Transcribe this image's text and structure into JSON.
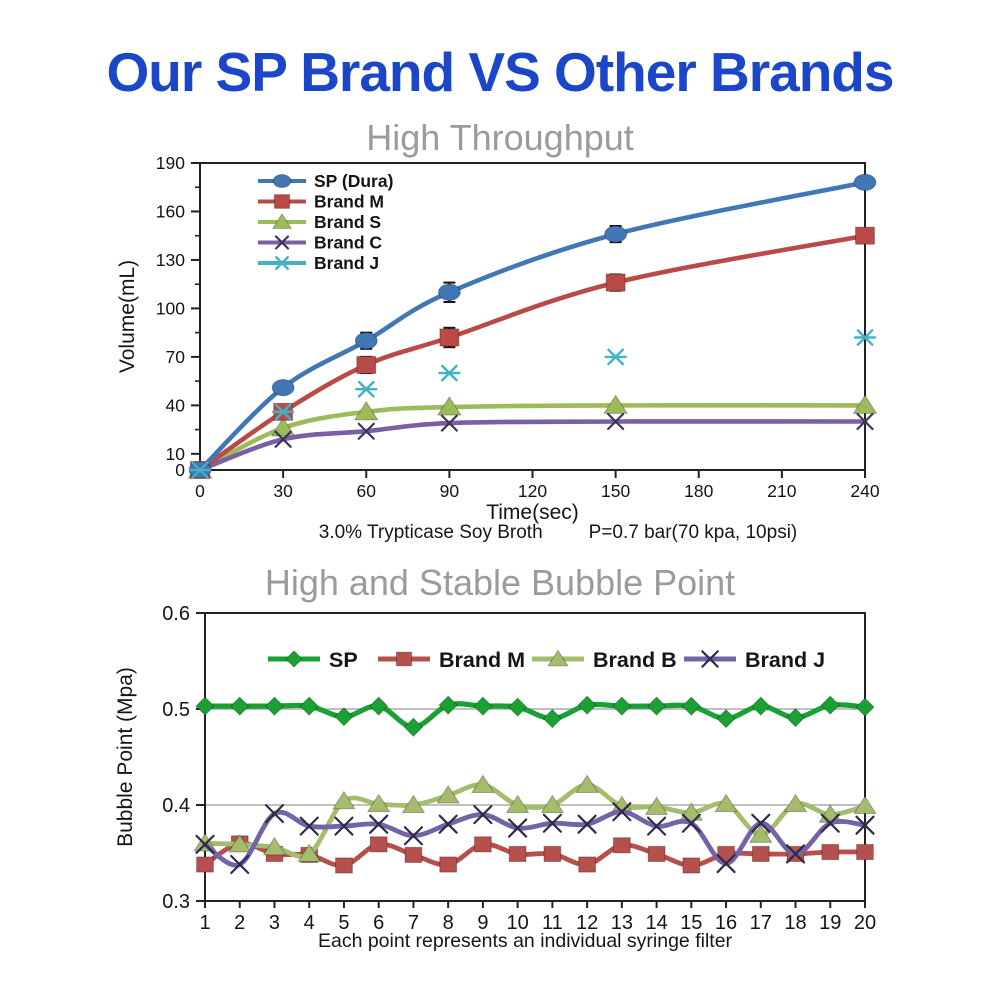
{
  "page": {
    "title": "Our SP Brand VS Other Brands",
    "title_color": "#1b46c9",
    "subtitle_color": "#9b9b9b",
    "background": "#ffffff"
  },
  "chart_data": [
    {
      "type": "line",
      "title": "High Throughput",
      "xlabel": "Time(sec)",
      "ylabel": "Volume(mL)",
      "xlim": [
        0,
        240
      ],
      "ylim": [
        0,
        190
      ],
      "x_ticks": [
        0,
        30,
        60,
        90,
        120,
        150,
        180,
        210,
        240
      ],
      "y_ticks": [
        0,
        10,
        40,
        70,
        100,
        130,
        160,
        190
      ],
      "grid": false,
      "legend_position": "top-left-inside",
      "caption_left": "3.0% Trypticase Soy Broth",
      "caption_right": "P=0.7 bar(70 kpa, 10psi)",
      "x": [
        0,
        30,
        60,
        90,
        150,
        240
      ],
      "series": [
        {
          "name": "SP (Dura)",
          "color": "#4177b5",
          "marker": "ellipse",
          "line": true,
          "values": [
            0,
            51,
            80,
            110,
            146,
            178
          ],
          "err": [
            0,
            0,
            5,
            6,
            5,
            0
          ]
        },
        {
          "name": "Brand M",
          "color": "#b94a46",
          "marker": "square",
          "line": true,
          "values": [
            0,
            36,
            65,
            82,
            116,
            145
          ],
          "err": [
            0,
            4,
            5,
            6,
            5,
            0
          ]
        },
        {
          "name": "Brand S",
          "color": "#9cbc5c",
          "marker": "triangle",
          "line": true,
          "values": [
            0,
            26,
            36,
            39,
            40,
            40
          ]
        },
        {
          "name": "Brand C",
          "color": "#7b5fa5",
          "marker": "x",
          "marker_color": "#3c3654",
          "line": true,
          "values": [
            0,
            19,
            24,
            29,
            30,
            30
          ]
        },
        {
          "name": "Brand J",
          "color": "#41b1c6",
          "marker": "star",
          "line": false,
          "values": [
            0,
            36,
            50,
            60,
            70,
            82
          ]
        }
      ]
    },
    {
      "type": "line",
      "title": "High and Stable Bubble Point",
      "xlabel": "",
      "ylabel": "Bubble Point (Mpa)",
      "caption": "Each point represents an individual syringe filter",
      "xlim": [
        1,
        20
      ],
      "ylim": [
        0.3,
        0.6
      ],
      "x_ticks": [
        1,
        2,
        3,
        4,
        5,
        6,
        7,
        8,
        9,
        10,
        11,
        12,
        13,
        14,
        15,
        16,
        17,
        18,
        19,
        20
      ],
      "y_ticks": [
        0.3,
        0.4,
        0.5,
        0.6
      ],
      "gridlines": [
        0.4,
        0.5
      ],
      "legend_position": "top-inside-horizontal",
      "x": [
        1,
        2,
        3,
        4,
        5,
        6,
        7,
        8,
        9,
        10,
        11,
        12,
        13,
        14,
        15,
        16,
        17,
        18,
        19,
        20
      ],
      "series": [
        {
          "name": "SP",
          "color": "#1aa134",
          "marker": "diamond",
          "line": true,
          "values": [
            0.503,
            0.503,
            0.503,
            0.503,
            0.492,
            0.503,
            0.481,
            0.504,
            0.503,
            0.502,
            0.49,
            0.504,
            0.503,
            0.503,
            0.503,
            0.49,
            0.503,
            0.491,
            0.504,
            0.502
          ]
        },
        {
          "name": "Brand M",
          "color": "#b5504c",
          "marker": "square",
          "line": true,
          "values": [
            0.338,
            0.36,
            0.349,
            0.348,
            0.337,
            0.359,
            0.348,
            0.338,
            0.359,
            0.349,
            0.349,
            0.338,
            0.358,
            0.349,
            0.337,
            0.349,
            0.349,
            0.349,
            0.351,
            0.351
          ]
        },
        {
          "name": "Brand B",
          "color": "#a4bd6d",
          "marker": "triangle",
          "line": true,
          "values": [
            0.36,
            0.359,
            0.356,
            0.349,
            0.404,
            0.401,
            0.4,
            0.41,
            0.421,
            0.4,
            0.4,
            0.421,
            0.399,
            0.398,
            0.392,
            0.401,
            0.369,
            0.401,
            0.39,
            0.399
          ]
        },
        {
          "name": "Brand J",
          "color": "#7463a8",
          "marker": "x",
          "marker_color": "#2f2b45",
          "line": true,
          "values": [
            0.359,
            0.338,
            0.391,
            0.378,
            0.378,
            0.38,
            0.368,
            0.38,
            0.39,
            0.376,
            0.381,
            0.38,
            0.393,
            0.378,
            0.381,
            0.339,
            0.381,
            0.349,
            0.381,
            0.379
          ]
        }
      ]
    }
  ]
}
